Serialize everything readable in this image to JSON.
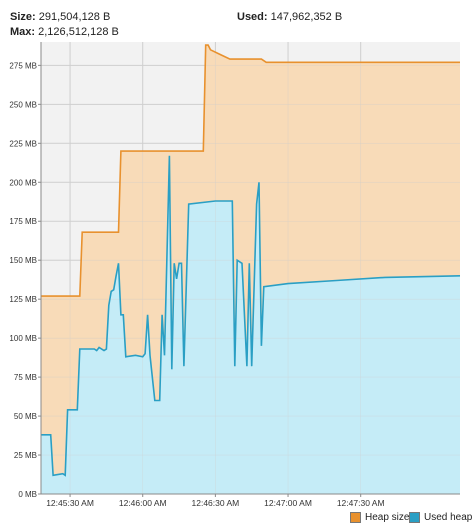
{
  "stats": {
    "size_label": "Size:",
    "size_value": "291,504,128 B",
    "max_label": "Max:",
    "max_value": "2,126,512,128 B",
    "used_label": "Used:",
    "used_value": "147,962,352 B"
  },
  "chart_data": {
    "type": "area",
    "title": "",
    "xlabel": "",
    "ylabel": "",
    "ylim": [
      0,
      290
    ],
    "xlim": [
      "12:45:18",
      "12:48:11"
    ],
    "yticks": [
      0,
      25,
      50,
      75,
      100,
      125,
      150,
      175,
      200,
      225,
      250,
      275
    ],
    "ytick_labels": [
      "0 MB",
      "25 MB",
      "50 MB",
      "75 MB",
      "100 MB",
      "125 MB",
      "150 MB",
      "175 MB",
      "200 MB",
      "225 MB",
      "250 MB",
      "275 MB"
    ],
    "xticks": [
      "12:45:30",
      "12:46:00",
      "12:46:30",
      "12:47:00",
      "12:47:30"
    ],
    "xtick_labels": [
      "12:45:30 AM",
      "12:46:00 AM",
      "12:46:30 AM",
      "12:47:00 AM",
      "12:47:30 AM"
    ],
    "grid": true,
    "legend_position": "bottom-right",
    "colors": {
      "heap_line": "#e8912e",
      "heap_fill": "#f8d9b4",
      "used_line": "#2a9fc4",
      "used_fill": "#c5ecf7",
      "plot_bg": "#f2f2f2",
      "grid": "#cfcfcf"
    },
    "series": [
      {
        "name": "Heap size",
        "points": [
          [
            "12:45:18",
            127
          ],
          [
            "12:45:34",
            127
          ],
          [
            "12:45:35",
            168
          ],
          [
            "12:45:50",
            168
          ],
          [
            "12:45:51",
            220
          ],
          [
            "12:46:25",
            220
          ],
          [
            "12:46:26",
            288
          ],
          [
            "12:46:27",
            288
          ],
          [
            "12:46:28",
            285
          ],
          [
            "12:46:32",
            282
          ],
          [
            "12:46:36",
            279
          ],
          [
            "12:46:49",
            279
          ],
          [
            "12:46:51",
            277
          ],
          [
            "12:48:11",
            277
          ]
        ]
      },
      {
        "name": "Used heap",
        "points": [
          [
            "12:45:18",
            38
          ],
          [
            "12:45:22",
            38
          ],
          [
            "12:45:23",
            12
          ],
          [
            "12:45:27",
            13
          ],
          [
            "12:45:28",
            12
          ],
          [
            "12:45:29",
            54
          ],
          [
            "12:45:33",
            54
          ],
          [
            "12:45:34",
            93
          ],
          [
            "12:45:40",
            93
          ],
          [
            "12:45:41",
            92
          ],
          [
            "12:45:42",
            94
          ],
          [
            "12:45:44",
            92
          ],
          [
            "12:45:45",
            93
          ],
          [
            "12:45:46",
            121
          ],
          [
            "12:45:47",
            130
          ],
          [
            "12:45:48",
            131
          ],
          [
            "12:45:49",
            140
          ],
          [
            "12:45:50",
            148
          ],
          [
            "12:45:51",
            115
          ],
          [
            "12:45:52",
            115
          ],
          [
            "12:45:53",
            88
          ],
          [
            "12:45:57",
            89
          ],
          [
            "12:46:00",
            88
          ],
          [
            "12:46:01",
            90
          ],
          [
            "12:46:02",
            115
          ],
          [
            "12:46:03",
            89
          ],
          [
            "12:46:05",
            60
          ],
          [
            "12:46:07",
            60
          ],
          [
            "12:46:08",
            115
          ],
          [
            "12:46:09",
            89
          ],
          [
            "12:46:11",
            217
          ],
          [
            "12:46:12",
            80
          ],
          [
            "12:46:13",
            148
          ],
          [
            "12:46:14",
            138
          ],
          [
            "12:46:15",
            148
          ],
          [
            "12:46:16",
            148
          ],
          [
            "12:46:17",
            82
          ],
          [
            "12:46:19",
            186
          ],
          [
            "12:46:30",
            188
          ],
          [
            "12:46:37",
            188
          ],
          [
            "12:46:38",
            82
          ],
          [
            "12:46:39",
            150
          ],
          [
            "12:46:41",
            148
          ],
          [
            "12:46:43",
            82
          ],
          [
            "12:46:44",
            148
          ],
          [
            "12:46:45",
            82
          ],
          [
            "12:46:47",
            186
          ],
          [
            "12:46:48",
            200
          ],
          [
            "12:46:49",
            95
          ],
          [
            "12:46:50",
            133
          ],
          [
            "12:47:00",
            135
          ],
          [
            "12:47:20",
            137
          ],
          [
            "12:47:40",
            139
          ],
          [
            "12:48:11",
            140
          ]
        ]
      }
    ]
  }
}
